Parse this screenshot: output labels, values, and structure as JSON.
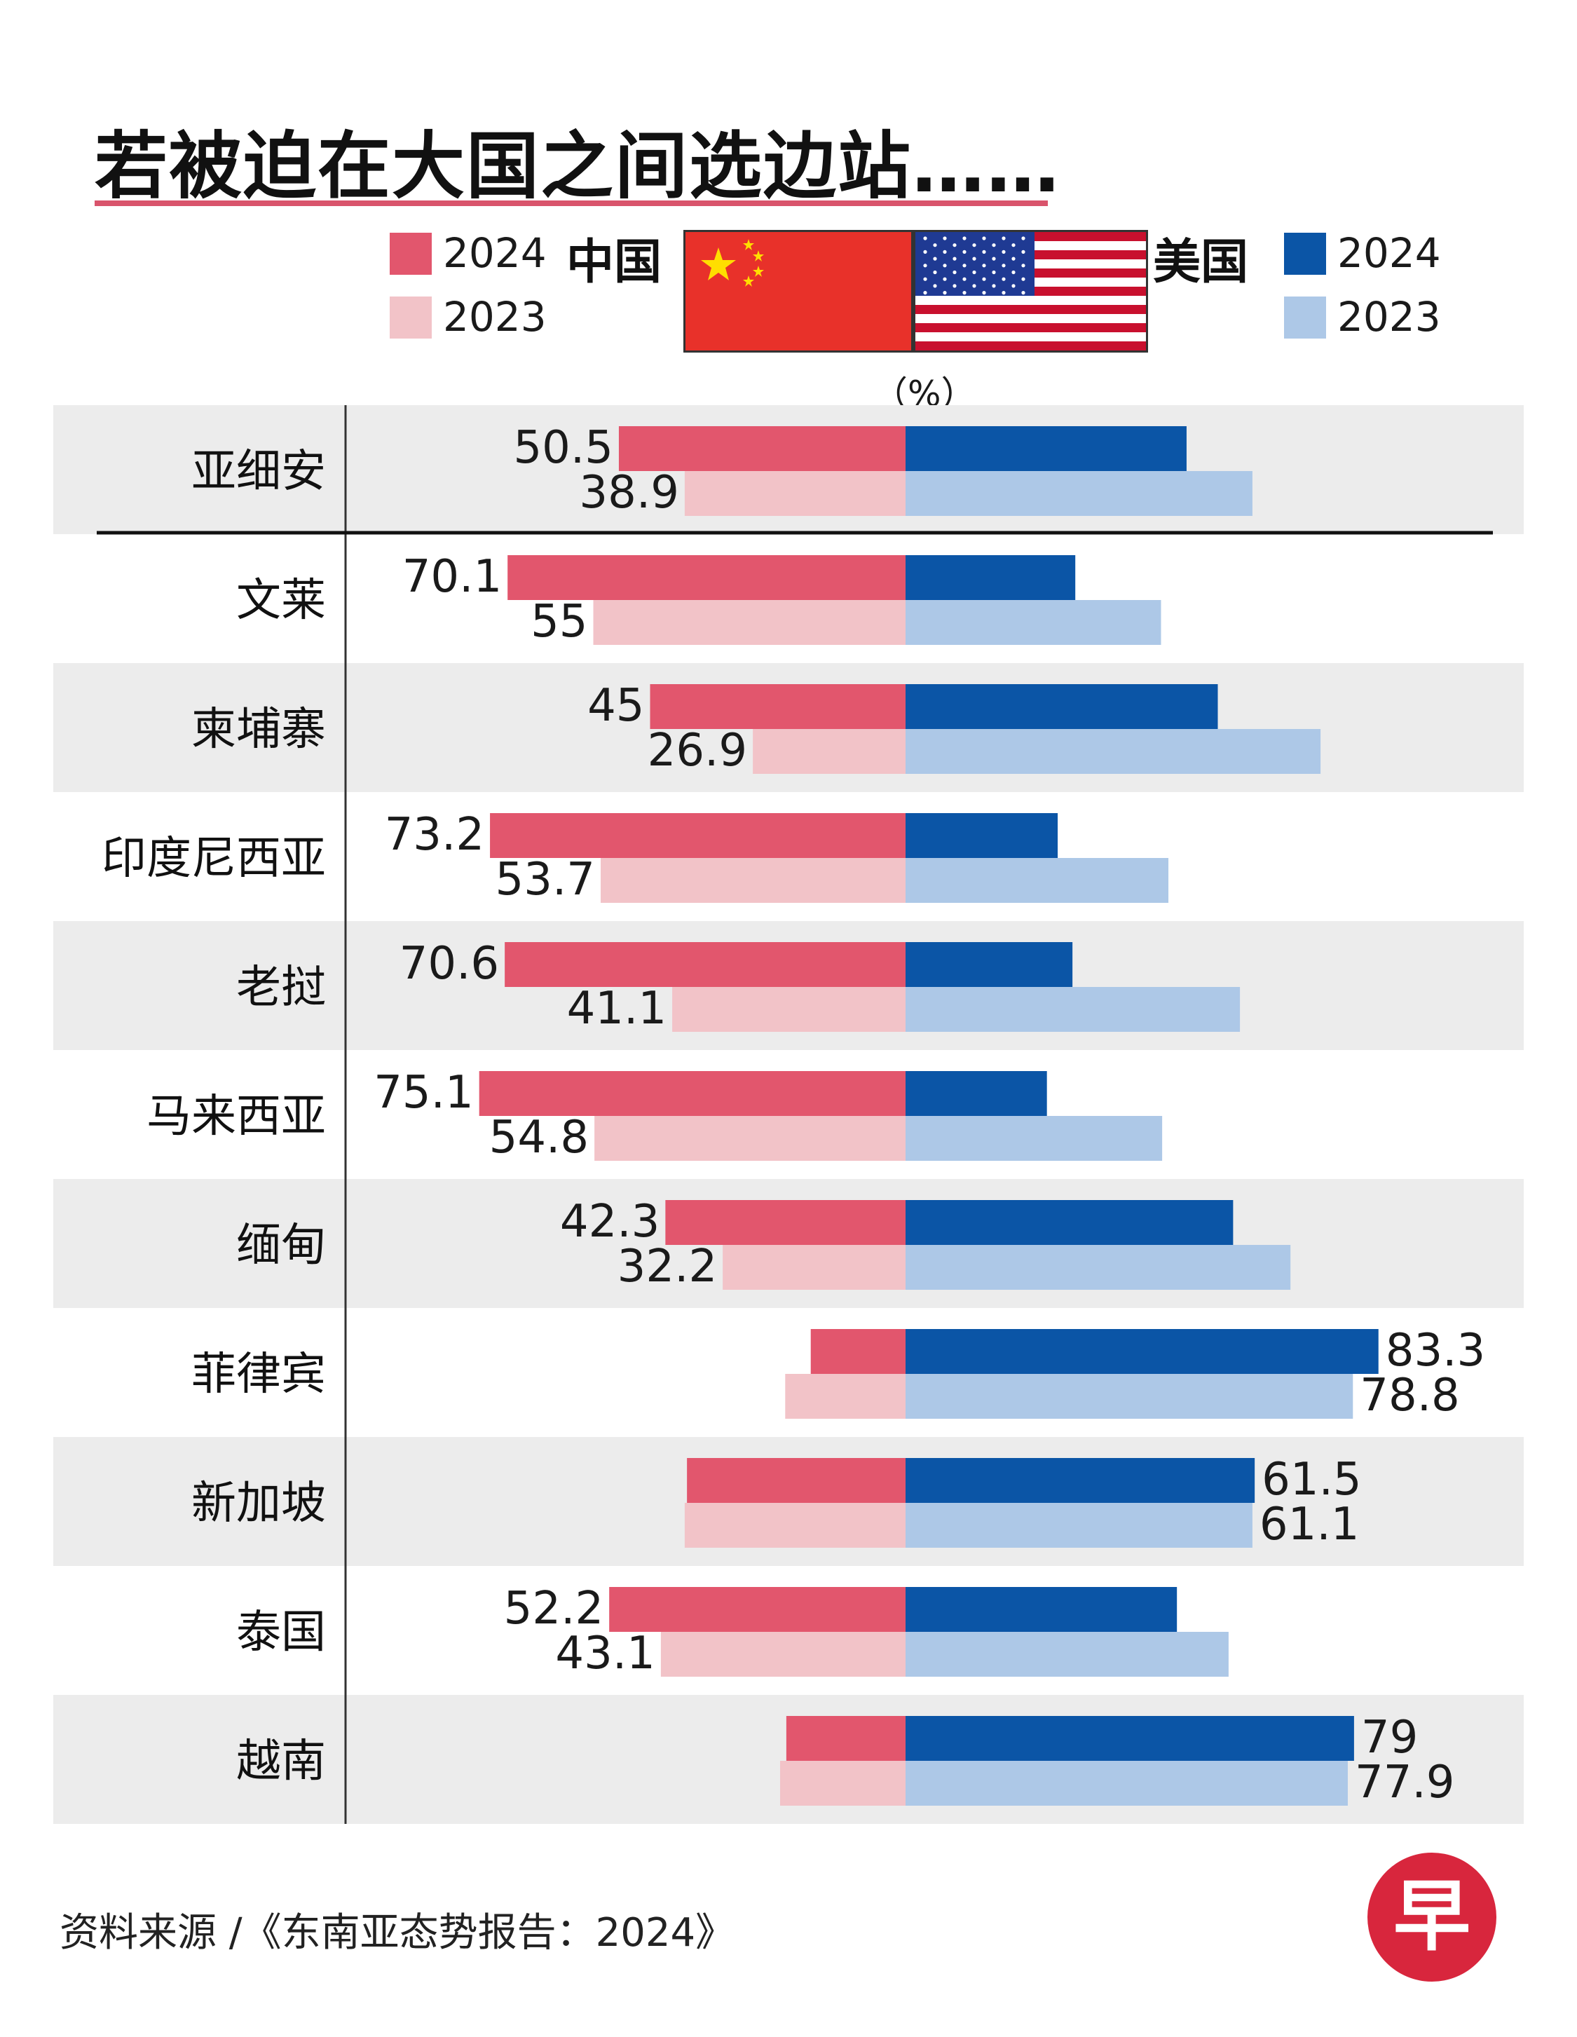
{
  "title": "若被迫在大国之间选边站……",
  "legend": {
    "china_label": "中国",
    "us_label": "美国",
    "china_2024": "2024",
    "china_2023": "2023",
    "us_2024": "2024",
    "us_2023": "2023"
  },
  "unit": "（%）",
  "source": "资料来源 /《东南亚态势报告：2024》",
  "logo_text": "早",
  "colors": {
    "china_2024": "#e2566d",
    "china_2023": "#f2c3c8",
    "us_2024": "#0b55a6",
    "us_2023": "#adc8e7",
    "row_shade": "#ececec",
    "title_rule": "#d9546c"
  },
  "chart_data": {
    "type": "bar",
    "orientation": "horizontal-diverging",
    "categories": [
      "亚细安",
      "文莱",
      "柬埔寨",
      "印度尼西亚",
      "老挝",
      "马来西亚",
      "缅甸",
      "菲律宾",
      "新加坡",
      "泰国",
      "越南"
    ],
    "series": [
      {
        "name": "中国 2024",
        "values": [
          50.5,
          70.1,
          45,
          73.2,
          70.6,
          75.1,
          42.3,
          16.7,
          38.5,
          52.2,
          21
        ]
      },
      {
        "name": "中国 2023",
        "values": [
          38.9,
          55,
          26.9,
          53.7,
          41.1,
          54.8,
          32.2,
          21.2,
          38.9,
          43.1,
          22.1
        ]
      },
      {
        "name": "美国 2024",
        "values": [
          49.5,
          29.9,
          55,
          26.8,
          29.4,
          24.9,
          57.7,
          83.3,
          61.5,
          47.8,
          79
        ]
      },
      {
        "name": "美国 2023",
        "values": [
          61.1,
          45,
          73.1,
          46.3,
          58.9,
          45.2,
          67.8,
          78.8,
          61.1,
          56.9,
          77.9
        ]
      }
    ],
    "labels": {
      "china_2024": [
        "50.5",
        "70.1",
        "45",
        "73.2",
        "70.6",
        "75.1",
        "42.3",
        "",
        "",
        "52.2",
        ""
      ],
      "china_2023": [
        "38.9",
        "55",
        "26.9",
        "53.7",
        "41.1",
        "54.8",
        "32.2",
        "",
        "",
        "43.1",
        ""
      ],
      "us_2024": [
        "",
        "",
        "",
        "",
        "",
        "",
        "",
        "83.3",
        "61.5",
        "",
        "79"
      ],
      "us_2023": [
        "",
        "",
        "",
        "",
        "",
        "",
        "",
        "78.8",
        "61.1",
        "",
        "77.9"
      ]
    },
    "xlim": [
      -100,
      100
    ],
    "legend": "top"
  }
}
